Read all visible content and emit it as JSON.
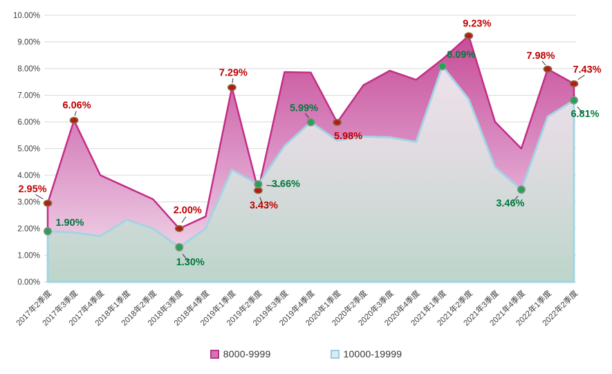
{
  "background": "#ffffff",
  "chart_data": {
    "type": "area",
    "title": "",
    "xlabel": "",
    "ylabel": "",
    "ylim": [
      0,
      10
    ],
    "grid": true,
    "legend_position": "bottom",
    "y_ticks": [
      "0.00%",
      "1.00%",
      "2.00%",
      "3.00%",
      "4.00%",
      "5.00%",
      "6.00%",
      "7.00%",
      "8.00%",
      "9.00%",
      "10.00%"
    ],
    "categories": [
      "2017年2季度",
      "2017年3季度",
      "2017年4季度",
      "2018年1季度",
      "2018年2季度",
      "2018年3季度",
      "2018年4季度",
      "2019年1季度",
      "2019年2季度",
      "2019年3季度",
      "2019年4季度",
      "2020年1季度",
      "2020年2季度",
      "2020年3季度",
      "2020年4季度",
      "2021年1季度",
      "2021年2季度",
      "2021年3季度",
      "2021年4季度",
      "2022年1季度",
      "2022年2季度"
    ],
    "series": [
      {
        "name": "8000-9999",
        "line_color": "#c42c86",
        "fill_top": "#c4418f",
        "fill_mid": "#da8ec3",
        "fill_bottom": "#f4e4ef",
        "marker_fill": "#b01f12",
        "marker_stroke": "#8e6b48",
        "label_color": "#c00000",
        "values": [
          2.95,
          6.06,
          4.0,
          3.55,
          3.1,
          2.0,
          2.45,
          7.29,
          3.43,
          7.87,
          7.85,
          5.98,
          7.38,
          7.92,
          7.58,
          8.35,
          9.23,
          6.0,
          5.0,
          7.98,
          7.43
        ],
        "labels": [
          {
            "index": 0,
            "text": "2.95%",
            "dx": -22,
            "dy": -16,
            "leader": true
          },
          {
            "index": 1,
            "text": "6.06%",
            "dx": 4,
            "dy": -17,
            "leader": true
          },
          {
            "index": 5,
            "text": "2.00%",
            "dx": 12,
            "dy": -22,
            "leader": true
          },
          {
            "index": 7,
            "text": "7.29%",
            "dx": 2,
            "dy": -17,
            "leader": true
          },
          {
            "index": 8,
            "text": "3.43%",
            "dx": 8,
            "dy": 26,
            "leader": true
          },
          {
            "index": 11,
            "text": "5.98%",
            "dx": 16,
            "dy": 24,
            "leader": false
          },
          {
            "index": 16,
            "text": "9.23%",
            "dx": 12,
            "dy": -13,
            "leader": false
          },
          {
            "index": 19,
            "text": "7.98%",
            "dx": -10,
            "dy": -15,
            "leader": true
          },
          {
            "index": 20,
            "text": "7.43%",
            "dx": 19,
            "dy": -16,
            "leader": true
          }
        ]
      },
      {
        "name": "10000-19999",
        "line_color": "#a3d4e4",
        "fill_top": "rgba(252,250,253,0.88)",
        "fill_mid": "rgba(225,228,228,0.90)",
        "fill_bottom": "rgba(184,212,200,0.93)",
        "marker_fill": "#23a455",
        "marker_stroke": "#8c8c8c",
        "label_color": "#00793e",
        "values": [
          1.9,
          1.85,
          1.72,
          2.33,
          2.0,
          1.3,
          2.0,
          4.2,
          3.66,
          5.1,
          5.99,
          5.3,
          5.45,
          5.42,
          5.25,
          8.09,
          6.85,
          4.3,
          3.46,
          6.2,
          6.81
        ],
        "labels": [
          {
            "index": 0,
            "text": "1.90%",
            "dx": 32,
            "dy": -8,
            "leader": false
          },
          {
            "index": 5,
            "text": "1.30%",
            "dx": 16,
            "dy": 26,
            "leader": true
          },
          {
            "index": 8,
            "text": "3.66%",
            "dx": 40,
            "dy": 4,
            "leader": true
          },
          {
            "index": 10,
            "text": "5.99%",
            "dx": -10,
            "dy": -16,
            "leader": true
          },
          {
            "index": 15,
            "text": "8.09%",
            "dx": 27,
            "dy": -12,
            "leader": false
          },
          {
            "index": 18,
            "text": "3.46%",
            "dx": -16,
            "dy": 24,
            "leader": true
          },
          {
            "index": 20,
            "text": "6.81%",
            "dx": 16,
            "dy": 24,
            "leader": true
          }
        ]
      }
    ],
    "legend": [
      {
        "label": "8000-9999",
        "swatch_fill": "#d873b3",
        "swatch_border": "#b03a87"
      },
      {
        "label": "10000-19999",
        "swatch_fill": "#d8ecf4",
        "swatch_border": "#9ecbde"
      }
    ],
    "style": {
      "grid_color": "#d9d9d9",
      "axis_text_color": "#404040",
      "leader_color": "#333333"
    }
  }
}
